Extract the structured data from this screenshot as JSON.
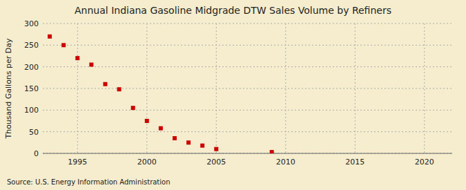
{
  "chart_data": {
    "type": "scatter",
    "title": "Annual Indiana Gasoline Midgrade DTW Sales Volume by Refiners",
    "y_label": "Thousand Gallons per Day",
    "annotations": [
      "Source: U.S. Energy Information Administration"
    ],
    "x": [
      1993,
      1994,
      1995,
      1996,
      1997,
      1998,
      1999,
      2000,
      2001,
      2002,
      2003,
      2004,
      2005,
      2009
    ],
    "values": [
      270,
      250,
      220,
      205,
      160,
      148,
      105,
      75,
      58,
      35,
      25,
      18,
      10,
      3
    ],
    "color": "#cc0000",
    "marker": "square",
    "xlim": [
      1992.5,
      2022
    ],
    "ylim": [
      0,
      300
    ],
    "xticks": [
      1995,
      2000,
      2005,
      2010,
      2015,
      2020
    ],
    "yticks": [
      0,
      50,
      100,
      150,
      200,
      250,
      300
    ],
    "grid": true
  }
}
